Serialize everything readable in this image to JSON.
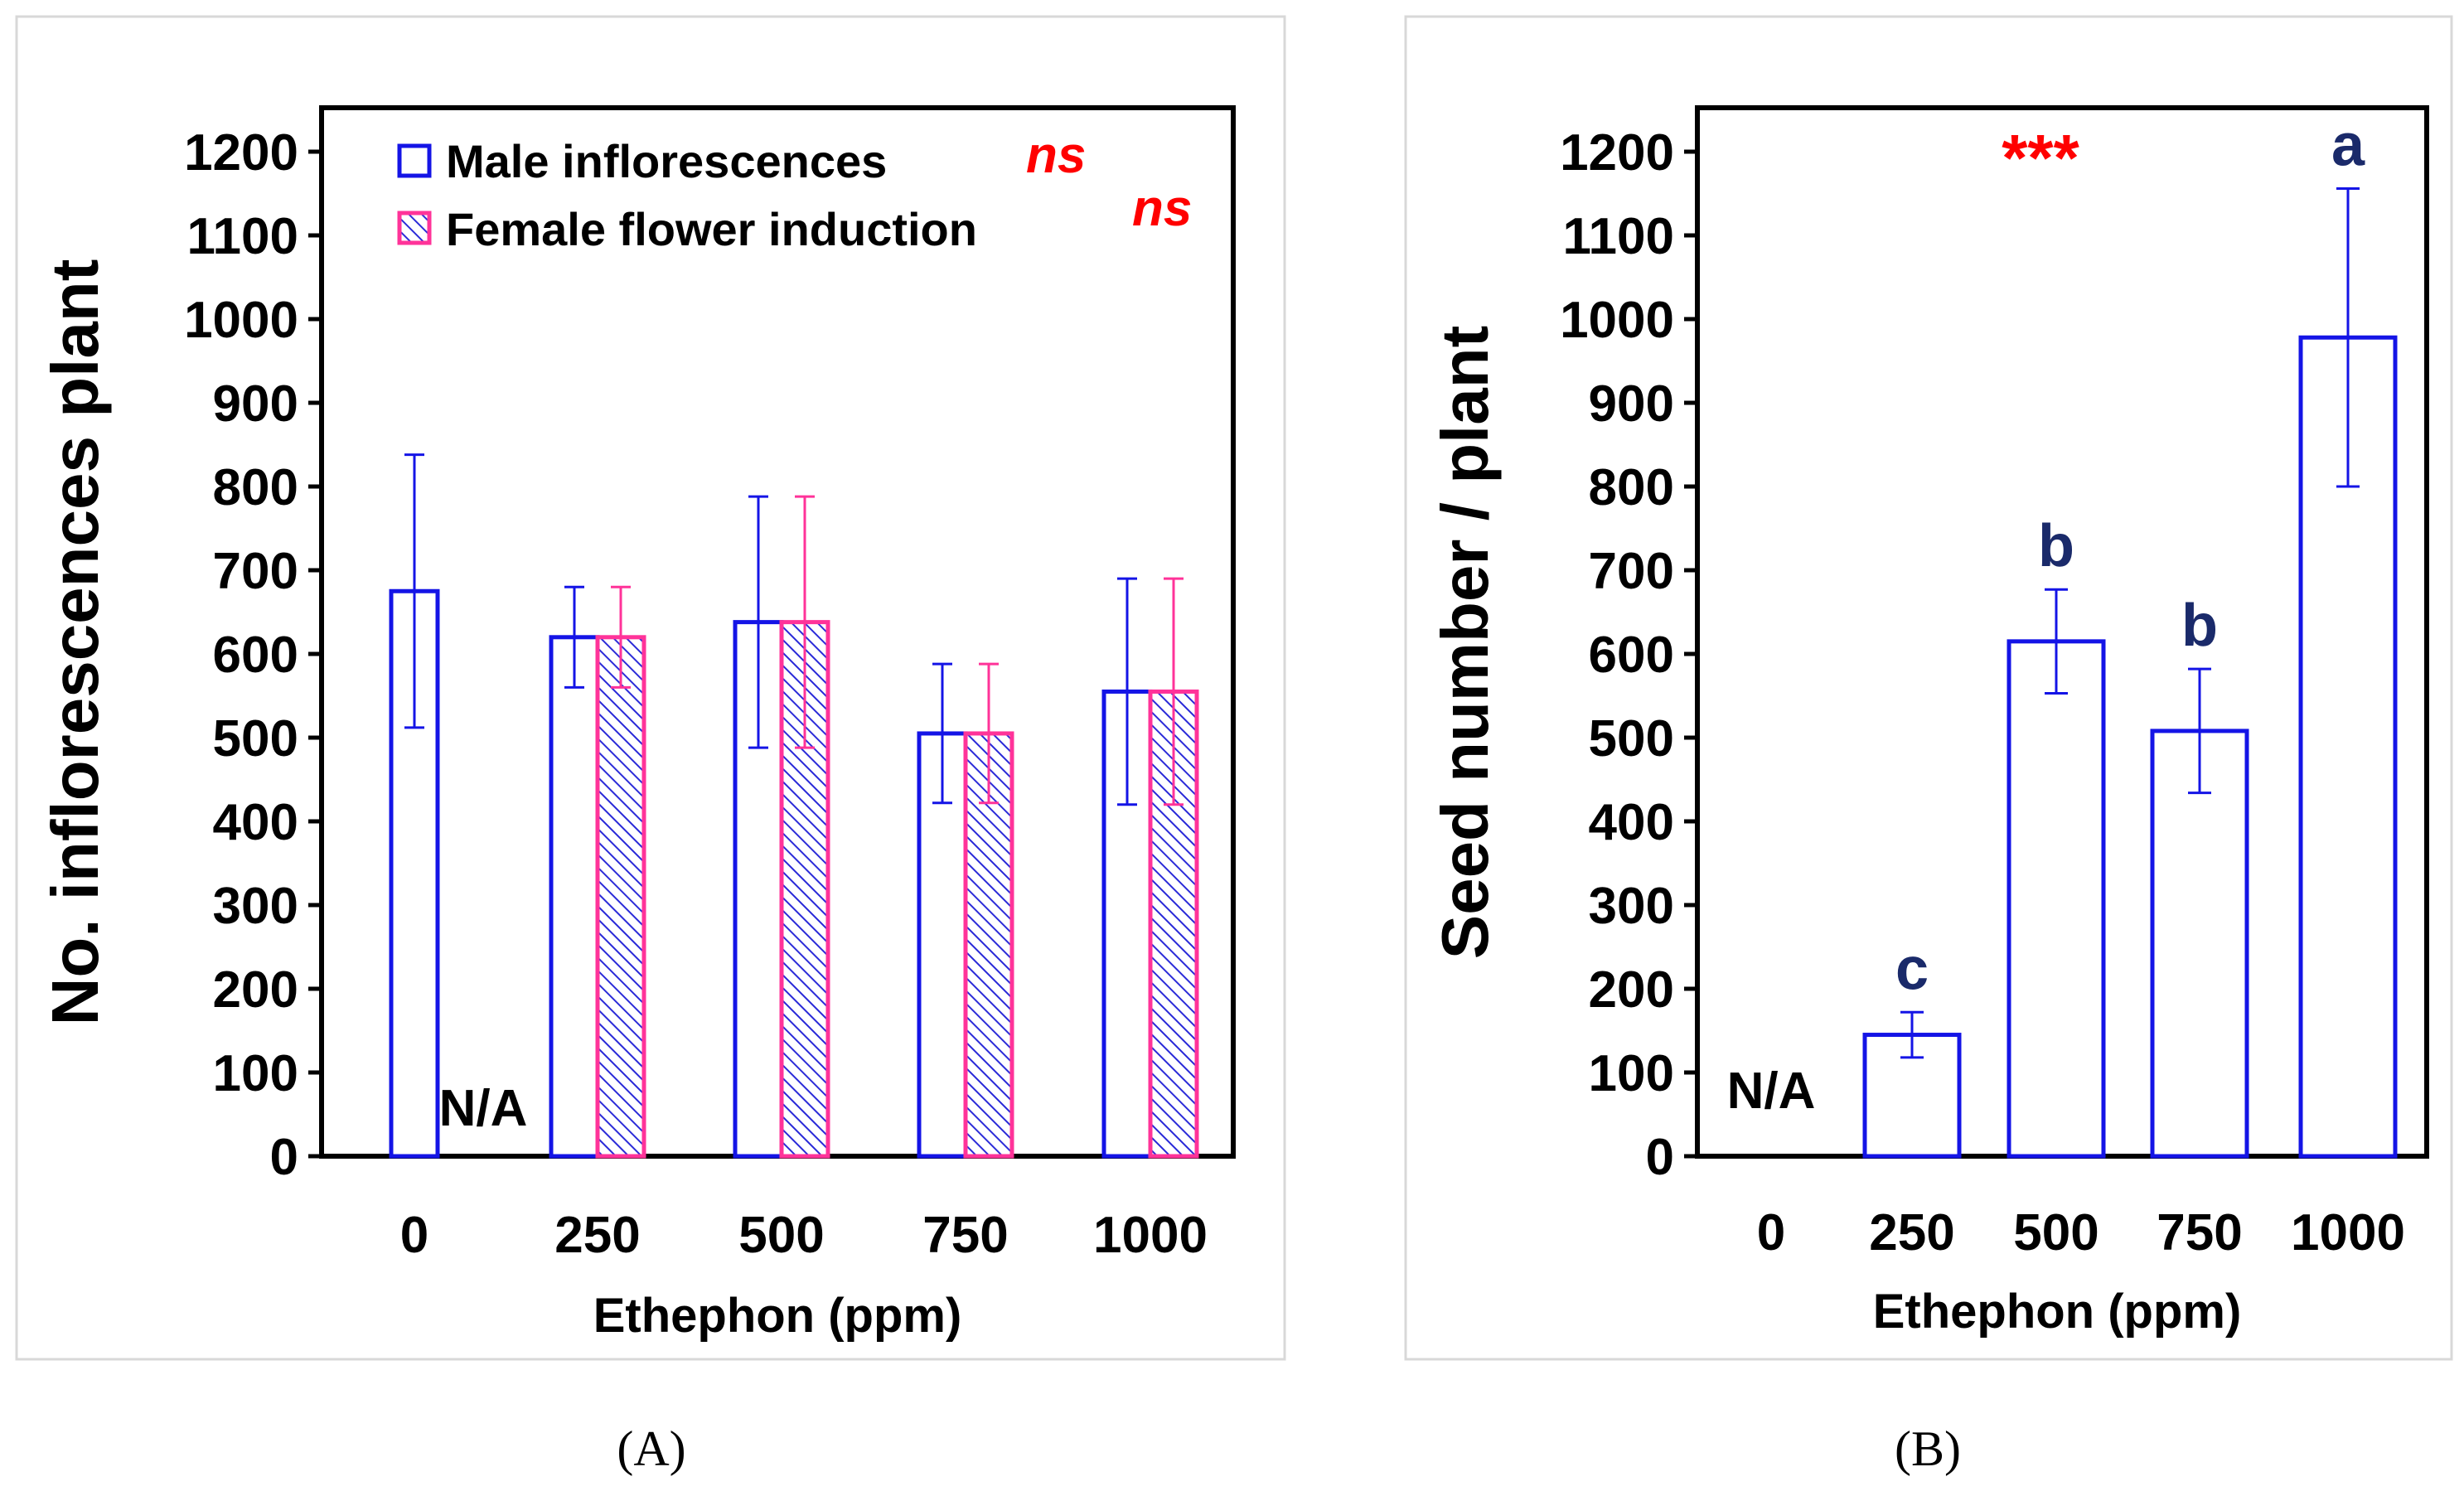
{
  "colors": {
    "male": "#1414e6",
    "female_edge": "#ff3399",
    "female_hatch": "#2a2ad8",
    "significance": "#ff0000",
    "na_a": "#ff3399",
    "letters": "#1a2a6a",
    "frame": "#d8d8d8",
    "axis": "#000000"
  },
  "chart_data": [
    {
      "type": "bar",
      "panel_label": "(A)",
      "xlabel": "Ethephon (ppm)",
      "ylabel": "No. inflorescences  plant",
      "ylim": [
        0,
        1200
      ],
      "yticks": [
        0,
        100,
        200,
        300,
        400,
        500,
        600,
        700,
        800,
        900,
        1000,
        1100,
        1200
      ],
      "categories": [
        "0",
        "250",
        "500",
        "750",
        "1000"
      ],
      "series": [
        {
          "name": "Male inflorescences",
          "significance": "ns",
          "values": [
            675,
            620,
            638,
            505,
            555
          ],
          "errors": [
            163,
            60,
            150,
            83,
            135
          ]
        },
        {
          "name": "Female flower induction",
          "significance": "ns",
          "values": [
            null,
            620,
            638,
            505,
            555
          ],
          "errors": [
            null,
            60,
            150,
            83,
            135
          ]
        }
      ],
      "na_label": "N/A",
      "legend_position": "top"
    },
    {
      "type": "bar",
      "panel_label": "(B)",
      "xlabel": "Ethephon (ppm)",
      "ylabel": "Seed number / plant",
      "ylim": [
        0,
        1200
      ],
      "yticks": [
        0,
        100,
        200,
        300,
        400,
        500,
        600,
        700,
        800,
        900,
        1000,
        1100,
        1200
      ],
      "categories": [
        "0",
        "250",
        "500",
        "750",
        "1000"
      ],
      "series": [
        {
          "name": "Seed number",
          "values": [
            null,
            145,
            615,
            508,
            978
          ],
          "errors": [
            null,
            27,
            62,
            74,
            178
          ],
          "letters": [
            "",
            "c",
            "b",
            "b",
            "a"
          ]
        }
      ],
      "significance": "***",
      "na_label": "N/A"
    }
  ]
}
